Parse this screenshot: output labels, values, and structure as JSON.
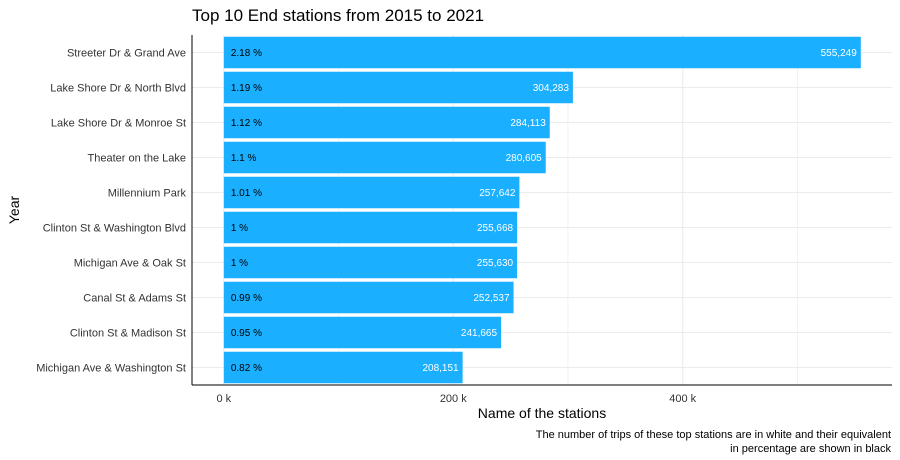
{
  "chart_data": {
    "type": "bar",
    "orientation": "horizontal",
    "title": "Top 10 End stations from 2015 to 2021",
    "xlabel": "Name of the stations",
    "ylabel": "Year",
    "caption": [
      "The number of trips of these top stations are in white and their equivalent",
      "in percentage are shown in black"
    ],
    "categories": [
      "Streeter Dr & Grand Ave",
      "Lake Shore Dr & North Blvd",
      "Lake Shore Dr & Monroe St",
      "Theater on the Lake",
      "Millennium Park",
      "Clinton St & Washington Blvd",
      "Michigan Ave & Oak St",
      "Canal St & Adams St",
      "Clinton St & Madison St",
      "Michigan Ave & Washington St"
    ],
    "values": [
      555249,
      304283,
      284113,
      280605,
      257642,
      255668,
      255630,
      252537,
      241665,
      208151
    ],
    "value_labels": [
      "555,249",
      "304,283",
      "284,113",
      "280,605",
      "257,642",
      "255,668",
      "255,630",
      "252,537",
      "241,665",
      "208,151"
    ],
    "percent_labels": [
      "2.18 %",
      "1.19 %",
      "1.12 %",
      "1.1 %",
      "1.01 %",
      "1 %",
      "1 %",
      "0.99 %",
      "0.95 %",
      "0.82 %"
    ],
    "x_ticks": [
      {
        "value": 0,
        "label": "0 k"
      },
      {
        "value": 200000,
        "label": "200 k"
      },
      {
        "value": 400000,
        "label": "400 k"
      }
    ],
    "xlim": [
      -27763,
      582450
    ],
    "grid": true,
    "colors": {
      "bar": "#1AAFFF",
      "grid": "#EBEBEB",
      "axis": "#000000"
    }
  }
}
